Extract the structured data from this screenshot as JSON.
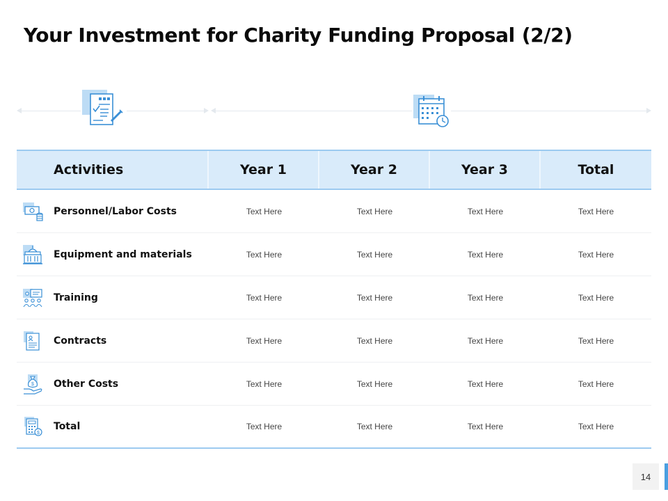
{
  "slide": {
    "title": "Your Investment for Charity Funding Proposal",
    "title_part": "(2/2)",
    "page_number": "14"
  },
  "colors": {
    "accent": "#4a9fe0",
    "header_fill": "#d9ebfa",
    "header_border": "#9ccaf0"
  },
  "icons": {
    "top_left": "checklist-document-icon",
    "top_right": "calendar-clock-icon"
  },
  "table": {
    "headers": [
      "Activities",
      "Year 1",
      "Year 2",
      "Year 3",
      "Total"
    ],
    "rows": [
      {
        "label": "Personnel/Labor Costs",
        "icon": "money-coins-icon",
        "values": [
          "Text Here",
          "Text Here",
          "Text Here",
          "Text Here"
        ]
      },
      {
        "label": "Equipment and materials",
        "icon": "building-icon",
        "values": [
          "Text Here",
          "Text Here",
          "Text Here",
          "Text Here"
        ]
      },
      {
        "label": "Training",
        "icon": "presentation-audience-icon",
        "values": [
          "Text Here",
          "Text Here",
          "Text Here",
          "Text Here"
        ]
      },
      {
        "label": "Contracts",
        "icon": "contract-document-icon",
        "values": [
          "Text Here",
          "Text Here",
          "Text Here",
          "Text Here"
        ]
      },
      {
        "label": "Other Costs",
        "icon": "money-bag-hand-icon",
        "values": [
          "Text Here",
          "Text Here",
          "Text Here",
          "Text Here"
        ]
      },
      {
        "label": "Total",
        "icon": "calculator-icon",
        "values": [
          "Text Here",
          "Text Here",
          "Text Here",
          "Text Here"
        ]
      }
    ]
  }
}
